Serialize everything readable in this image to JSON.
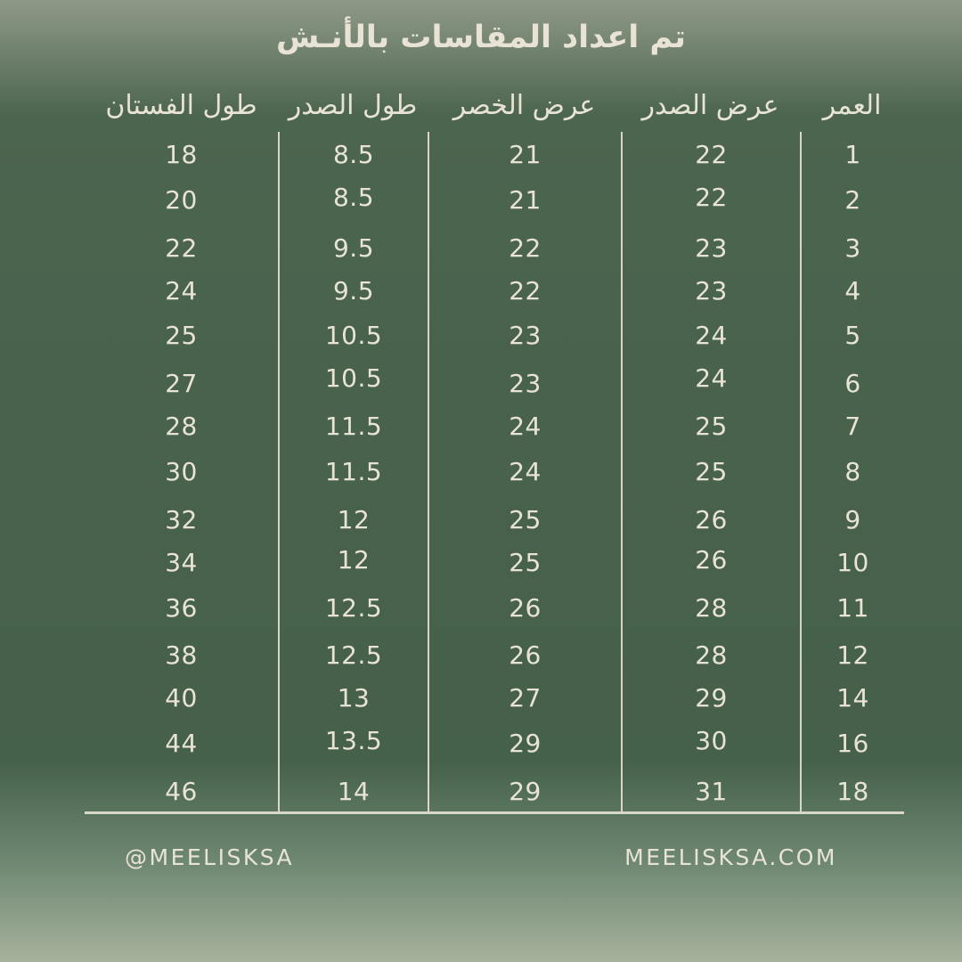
{
  "chart_data": {
    "type": "table",
    "title": "تم اعداد المقاسات بالأنـش",
    "title_meaning": "Measurements prepared in inches",
    "direction": "rtl",
    "row_count": 15,
    "columns": [
      {
        "key": "age",
        "label": "العمر",
        "values": [
          "1",
          "2",
          "3",
          "4",
          "5",
          "6",
          "7",
          "8",
          "9",
          "10",
          "11",
          "12",
          "14",
          "16",
          "18"
        ]
      },
      {
        "key": "chest_width",
        "label": "عرض الصدر",
        "values": [
          "22",
          "22",
          "23",
          "23",
          "24",
          "24",
          "25",
          "25",
          "26",
          "26",
          "28",
          "28",
          "29",
          "30",
          "31"
        ]
      },
      {
        "key": "waist_width",
        "label": "عرض الخصر",
        "values": [
          "21",
          "21",
          "22",
          "22",
          "23",
          "23",
          "24",
          "24",
          "25",
          "25",
          "26",
          "26",
          "27",
          "29",
          "29"
        ]
      },
      {
        "key": "chest_length",
        "label": "طول الصدر",
        "values": [
          "8.5",
          "8.5",
          "9.5",
          "9.5",
          "10.5",
          "10.5",
          "11.5",
          "11.5",
          "12",
          "12",
          "12.5",
          "12.5",
          "13",
          "13.5",
          "14"
        ]
      },
      {
        "key": "dress_length",
        "label": "طول الفستان",
        "values": [
          "18",
          "20",
          "22",
          "24",
          "25",
          "27",
          "28",
          "30",
          "32",
          "34",
          "36",
          "38",
          "40",
          "44",
          "46"
        ]
      }
    ]
  },
  "footer": {
    "handle": "@MEELISKSA",
    "website": "MEELISKSA.COM"
  },
  "colors": {
    "background_top": "#8f9988",
    "background_middle": "#47614d",
    "background_bottom": "#a7b29c",
    "text_cream": "#e8e3d4",
    "table_line": "#e4dfd0"
  }
}
